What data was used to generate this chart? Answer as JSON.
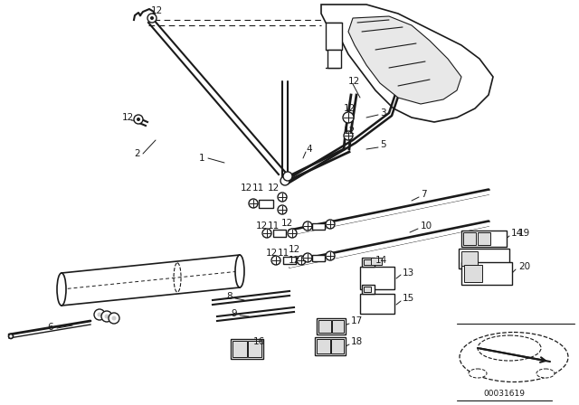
{
  "bg_color": "#ffffff",
  "line_color": "#1a1a1a",
  "fig_width": 6.4,
  "fig_height": 4.48,
  "dpi": 100,
  "diagram_id": "00031619"
}
